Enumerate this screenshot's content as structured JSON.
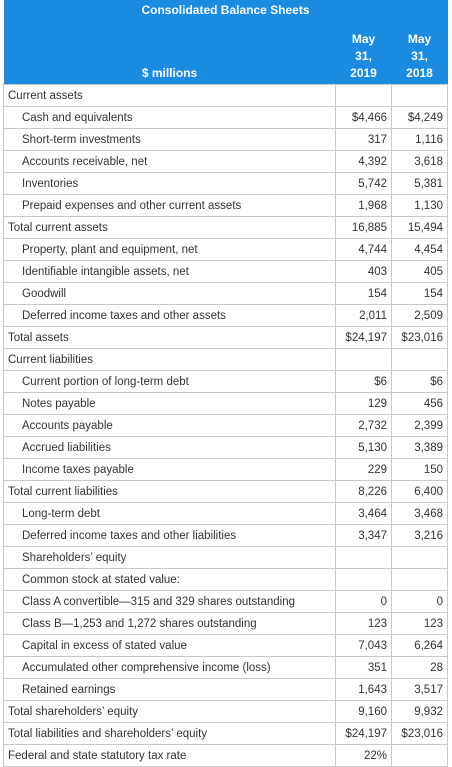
{
  "header": {
    "title": "Consolidated Balance Sheets",
    "units_label": "$ millions",
    "col1": [
      "May",
      "31,",
      "2019"
    ],
    "col2": [
      "May",
      "31,",
      "2018"
    ]
  },
  "rows": [
    {
      "label": "Current assets",
      "v1": "",
      "v2": "",
      "indent": false
    },
    {
      "label": "Cash and equivalents",
      "v1": "$4,466",
      "v2": "$4,249",
      "indent": true
    },
    {
      "label": "Short-term investments",
      "v1": "317",
      "v2": "1,116",
      "indent": true
    },
    {
      "label": "Accounts receivable, net",
      "v1": "4,392",
      "v2": "3,618",
      "indent": true
    },
    {
      "label": "Inventories",
      "v1": "5,742",
      "v2": "5,381",
      "indent": true
    },
    {
      "label": "Prepaid expenses and other current assets",
      "v1": "1,968",
      "v2": "1,130",
      "indent": true
    },
    {
      "label": "Total current assets",
      "v1": "16,885",
      "v2": "15,494",
      "indent": false
    },
    {
      "label": "Property, plant and equipment, net",
      "v1": "4,744",
      "v2": "4,454",
      "indent": true
    },
    {
      "label": "Identifiable intangible assets, net",
      "v1": "403",
      "v2": "405",
      "indent": true
    },
    {
      "label": "Goodwill",
      "v1": "154",
      "v2": "154",
      "indent": true
    },
    {
      "label": "Deferred income taxes and other assets",
      "v1": "2,011",
      "v2": "2,509",
      "indent": true
    },
    {
      "label": "Total assets",
      "v1": "$24,197",
      "v2": "$23,016",
      "indent": false
    },
    {
      "label": "Current liabilities",
      "v1": "",
      "v2": "",
      "indent": false
    },
    {
      "label": "Current portion of long-term debt",
      "v1": "$6",
      "v2": "$6",
      "indent": true
    },
    {
      "label": "Notes payable",
      "v1": "129",
      "v2": "456",
      "indent": true
    },
    {
      "label": "Accounts payable",
      "v1": "2,732",
      "v2": "2,399",
      "indent": true
    },
    {
      "label": "Accrued liabilities",
      "v1": "5,130",
      "v2": "3,389",
      "indent": true
    },
    {
      "label": "Income taxes payable",
      "v1": "229",
      "v2": "150",
      "indent": true
    },
    {
      "label": "Total current liabilities",
      "v1": "8,226",
      "v2": "6,400",
      "indent": false
    },
    {
      "label": "Long-term debt",
      "v1": "3,464",
      "v2": "3,468",
      "indent": true
    },
    {
      "label": "Deferred income taxes and other liabilities",
      "v1": "3,347",
      "v2": "3,216",
      "indent": true
    },
    {
      "label": "Shareholders’ equity",
      "v1": "",
      "v2": "",
      "indent": true
    },
    {
      "label": "Common stock at stated value:",
      "v1": "",
      "v2": "",
      "indent": true
    },
    {
      "label": "Class A convertible—315 and 329 shares outstanding",
      "v1": "0",
      "v2": "0",
      "indent": true
    },
    {
      "label": "Class B—1,253 and 1,272 shares outstanding",
      "v1": "123",
      "v2": "123",
      "indent": true
    },
    {
      "label": "Capital in excess of stated value",
      "v1": "7,043",
      "v2": "6,264",
      "indent": true
    },
    {
      "label": "Accumulated other comprehensive income (loss)",
      "v1": "351",
      "v2": "28",
      "indent": true
    },
    {
      "label": "Retained earnings",
      "v1": "1,643",
      "v2": "3,517",
      "indent": true
    },
    {
      "label": "Total shareholders’ equity",
      "v1": "9,160",
      "v2": "9,932",
      "indent": false
    },
    {
      "label": "Total liabilities and shareholders’ equity",
      "v1": "$24,197",
      "v2": "$23,016",
      "indent": false
    },
    {
      "label": "Federal and state statutory tax rate",
      "v1": "22%",
      "v2": "",
      "indent": false
    }
  ]
}
